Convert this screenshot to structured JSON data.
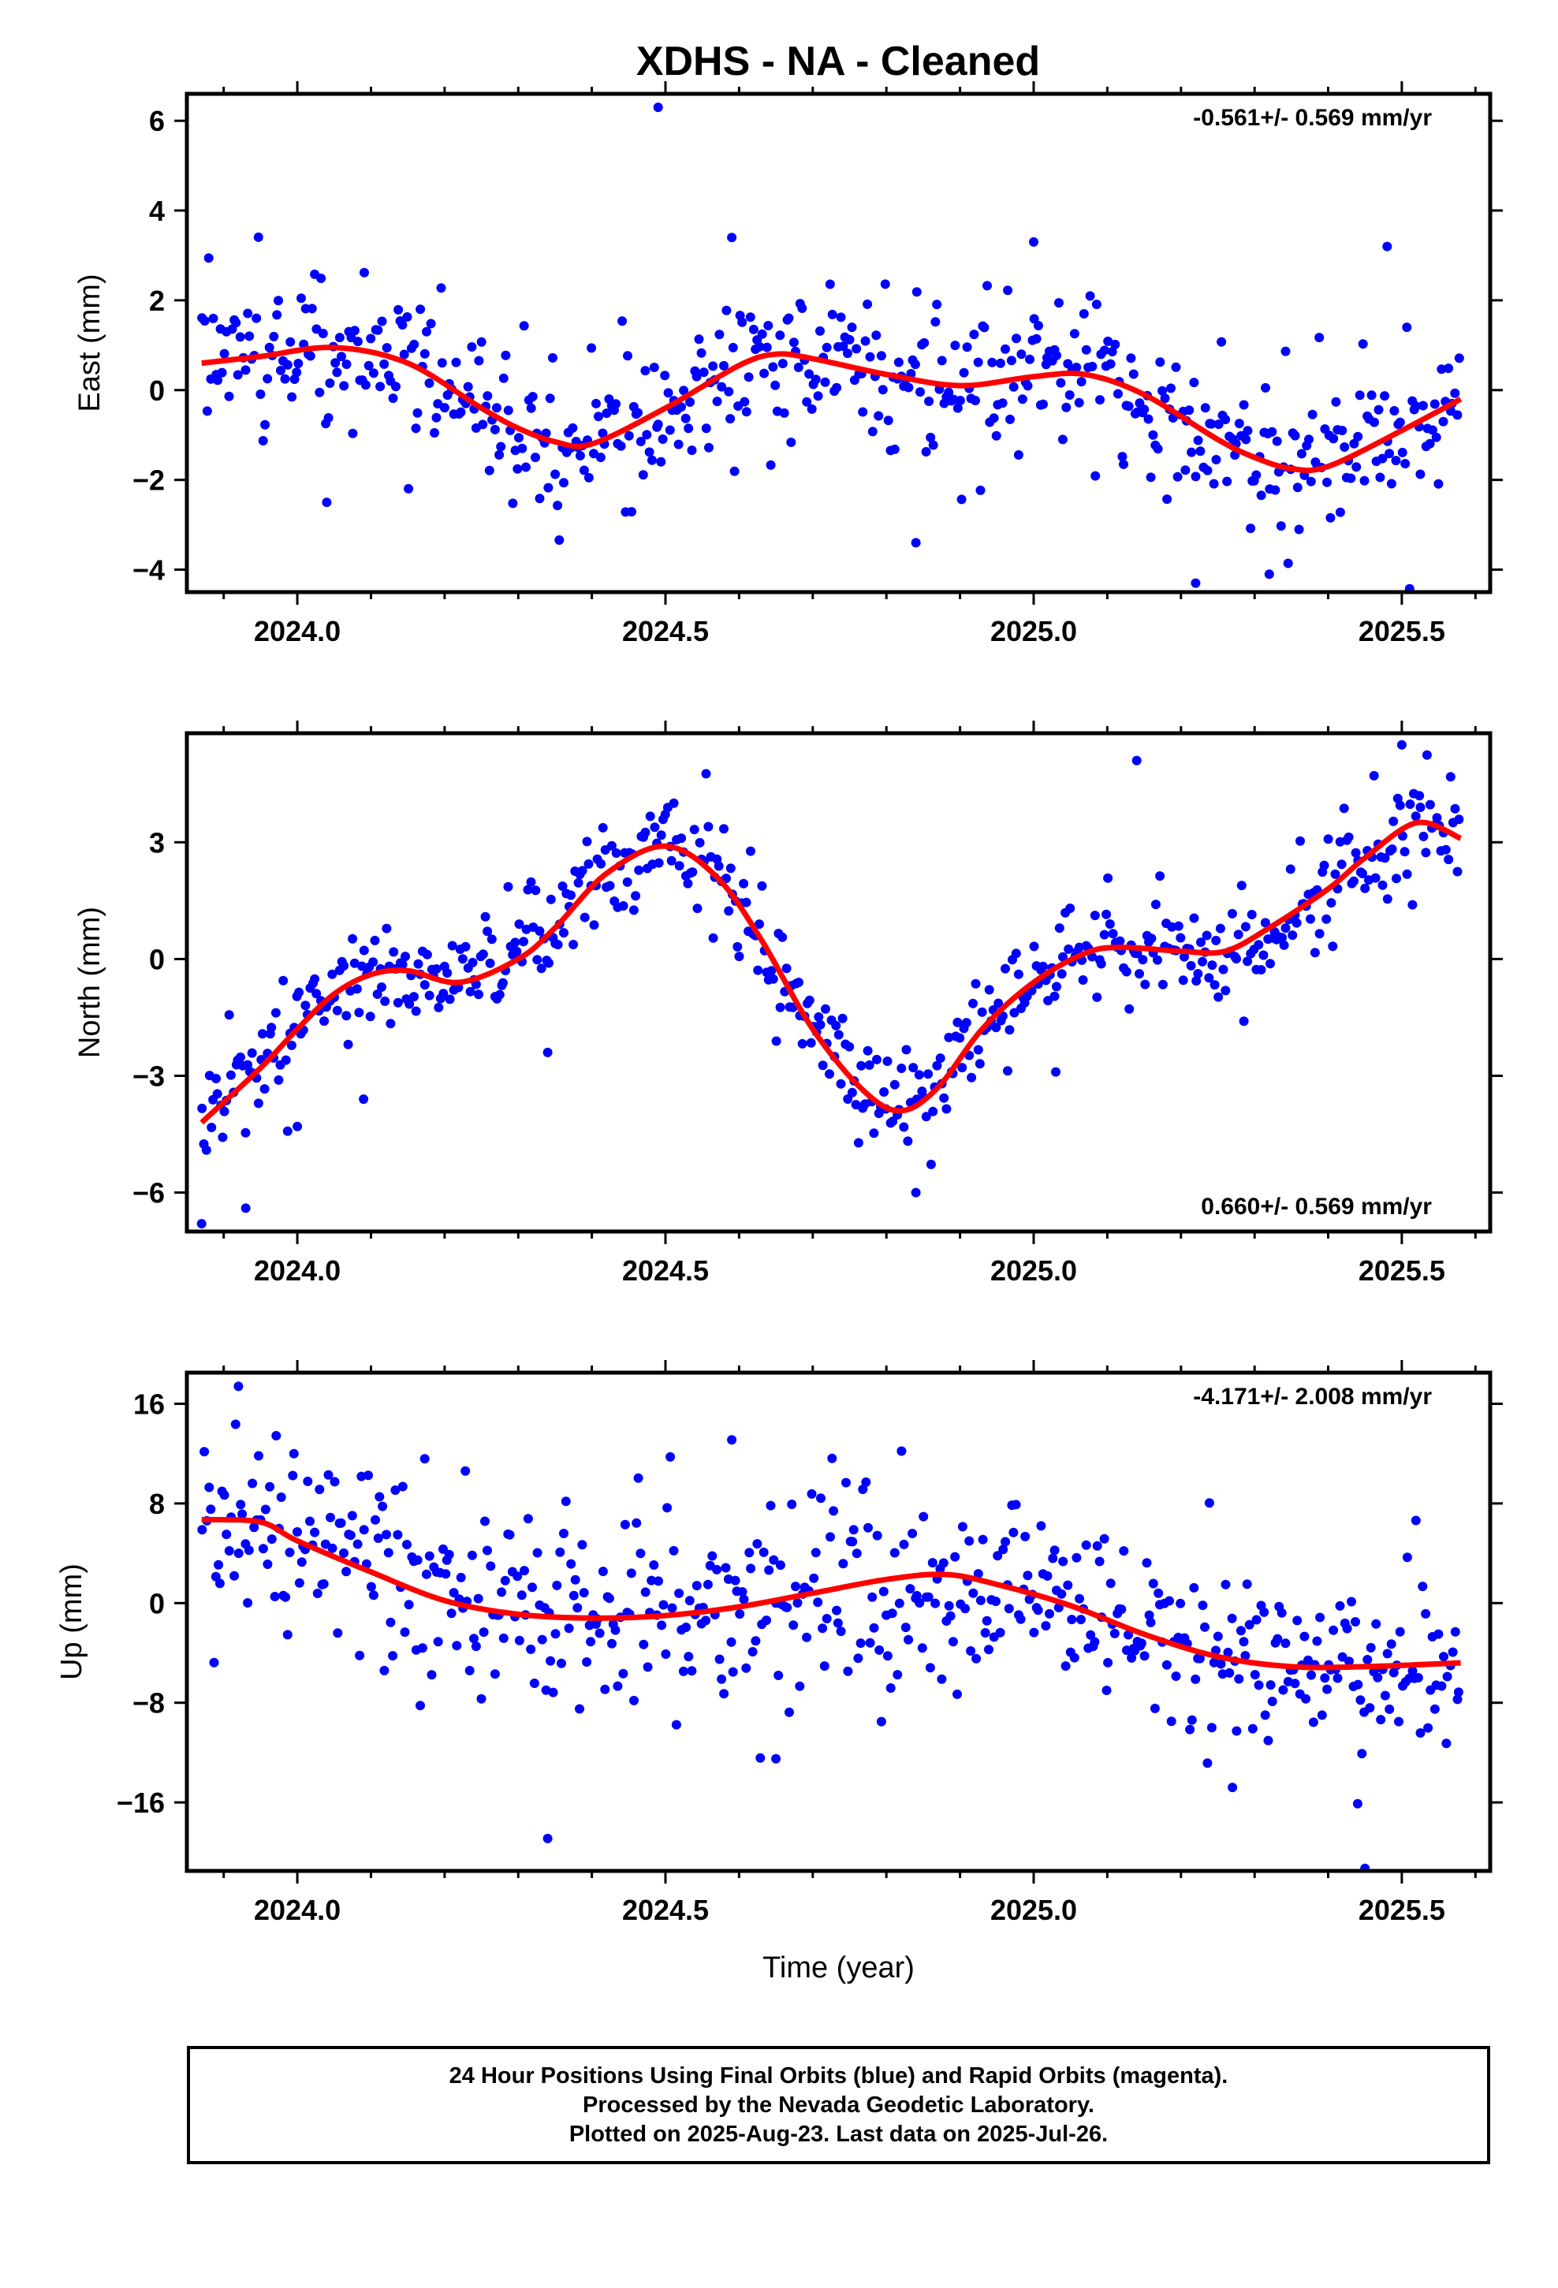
{
  "title": "XDHS  - NA - Cleaned",
  "footer": {
    "line1": "24 Hour Positions Using Final Orbits (blue) and Rapid Orbits (magenta).",
    "line2": "Processed by the Nevada Geodetic Laboratory.",
    "line3": "Plotted on 2025-Aug-23. Last data on 2025-Jul-26."
  },
  "colors": {
    "points": "#0000ff",
    "fit": "#ff0000",
    "axes": "#000000"
  },
  "chart_data": [
    {
      "type": "scatter",
      "ylabel": "East (mm)",
      "xlabel": "",
      "rate_label": "-0.561+/- 0.569 mm/yr",
      "rate_position": "top-right",
      "xlim": [
        2023.85,
        2025.62
      ],
      "ylim": [
        -4.5,
        6.6
      ],
      "xticks": [
        2024.0,
        2024.5,
        2025.0,
        2025.5
      ],
      "xtick_labels": [
        "2024.0",
        "2024.5",
        "2025.0",
        "2025.5"
      ],
      "yticks": [
        -4,
        -2,
        0,
        2,
        4,
        6
      ],
      "ytick_labels": [
        "−4",
        "−2",
        "0",
        "2",
        "4",
        "6"
      ],
      "fit": {
        "x": [
          2023.87,
          2023.95,
          2024.05,
          2024.15,
          2024.25,
          2024.3,
          2024.35,
          2024.4,
          2024.5,
          2024.6,
          2024.65,
          2024.7,
          2024.8,
          2024.9,
          2025.0,
          2025.07,
          2025.15,
          2025.25,
          2025.3,
          2025.35,
          2025.4,
          2025.5,
          2025.58
        ],
        "y": [
          0.6,
          0.75,
          0.95,
          0.6,
          -0.4,
          -0.85,
          -1.15,
          -1.2,
          -0.4,
          0.55,
          0.8,
          0.7,
          0.35,
          0.1,
          0.3,
          0.35,
          -0.1,
          -1.1,
          -1.5,
          -1.75,
          -1.7,
          -0.9,
          -0.2
        ]
      },
      "scatter": {
        "seed": 101,
        "count": 560,
        "scale": 1.0,
        "outliers": [
          [
            2024.49,
            6.3
          ],
          [
            2024.59,
            3.4
          ],
          [
            2025.0,
            3.3
          ],
          [
            2025.48,
            3.2
          ],
          [
            2025.22,
            -4.3
          ],
          [
            2025.32,
            -4.1
          ],
          [
            2024.84,
            -3.4
          ],
          [
            2024.04,
            -2.5
          ]
        ]
      }
    },
    {
      "type": "scatter",
      "ylabel": "North (mm)",
      "xlabel": "",
      "rate_label": "0.660+/- 0.569 mm/yr",
      "rate_position": "bottom-right",
      "xlim": [
        2023.85,
        2025.62
      ],
      "ylim": [
        -7.0,
        5.8
      ],
      "xticks": [
        2024.0,
        2024.5,
        2025.0,
        2025.5
      ],
      "xtick_labels": [
        "2024.0",
        "2024.5",
        "2025.0",
        "2025.5"
      ],
      "yticks": [
        -6,
        -3,
        0,
        3
      ],
      "ytick_labels": [
        "−6",
        "−3",
        "0",
        "3"
      ],
      "fit": {
        "x": [
          2023.87,
          2023.95,
          2024.0,
          2024.05,
          2024.1,
          2024.15,
          2024.22,
          2024.3,
          2024.35,
          2024.42,
          2024.5,
          2024.57,
          2024.63,
          2024.7,
          2024.77,
          2024.82,
          2024.87,
          2024.93,
          2025.0,
          2025.07,
          2025.12,
          2025.2,
          2025.26,
          2025.32,
          2025.4,
          2025.45,
          2025.52,
          2025.58
        ],
        "y": [
          -4.2,
          -2.8,
          -1.8,
          -0.9,
          -0.4,
          -0.3,
          -0.6,
          0.0,
          0.8,
          2.2,
          2.9,
          2.1,
          0.5,
          -1.8,
          -3.4,
          -3.9,
          -3.3,
          -1.8,
          -0.6,
          0.15,
          0.3,
          0.2,
          0.2,
          0.8,
          1.8,
          2.6,
          3.5,
          3.1
        ]
      },
      "scatter": {
        "seed": 202,
        "count": 560,
        "scale": 0.8,
        "outliers": [
          [
            2025.14,
            5.1
          ],
          [
            2025.5,
            5.5
          ],
          [
            2023.87,
            -6.8
          ],
          [
            2023.93,
            -6.4
          ],
          [
            2024.0,
            -4.3
          ],
          [
            2024.34,
            -2.4
          ],
          [
            2024.84,
            -6.0
          ],
          [
            2025.03,
            -2.9
          ],
          [
            2024.09,
            -3.6
          ]
        ]
      }
    },
    {
      "type": "scatter",
      "ylabel": "Up (mm)",
      "xlabel": "Time (year)",
      "rate_label": "-4.171+/- 2.008 mm/yr",
      "rate_position": "top-right",
      "xlim": [
        2023.85,
        2025.62
      ],
      "ylim": [
        -21.5,
        18.5
      ],
      "xticks": [
        2024.0,
        2024.5,
        2025.0,
        2025.5
      ],
      "xtick_labels": [
        "2024.0",
        "2024.5",
        "2025.0",
        "2025.5"
      ],
      "yticks": [
        -16,
        -8,
        0,
        8,
        16
      ],
      "ytick_labels": [
        "−16",
        "−8",
        "0",
        "8",
        "16"
      ],
      "fit": {
        "x": [
          2023.87,
          2023.95,
          2024.0,
          2024.1,
          2024.2,
          2024.3,
          2024.4,
          2024.5,
          2024.6,
          2024.7,
          2024.8,
          2024.88,
          2024.95,
          2025.05,
          2025.15,
          2025.25,
          2025.35,
          2025.45,
          2025.58
        ],
        "y": [
          6.7,
          6.5,
          5.0,
          2.5,
          0.2,
          -0.9,
          -1.2,
          -1.0,
          -0.3,
          0.8,
          1.9,
          2.3,
          1.5,
          -0.2,
          -2.5,
          -4.3,
          -5.1,
          -5.1,
          -4.8
        ]
      },
      "scatter": {
        "seed": 303,
        "count": 560,
        "scale": 4.5,
        "outliers": [
          [
            2023.92,
            17.4
          ],
          [
            2024.59,
            13.1
          ],
          [
            2024.34,
            -18.9
          ],
          [
            2025.45,
            -21.3
          ],
          [
            2024.65,
            -12.5
          ],
          [
            2025.44,
            -16.1
          ],
          [
            2025.27,
            -14.8
          ]
        ]
      }
    }
  ]
}
